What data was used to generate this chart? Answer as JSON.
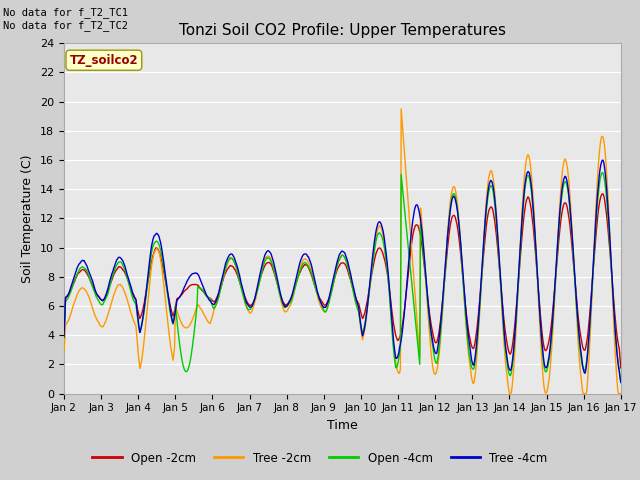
{
  "title": "Tonzi Soil CO2 Profile: Upper Temperatures",
  "xlabel": "Time",
  "ylabel": "Soil Temperature (C)",
  "ylim": [
    0,
    24
  ],
  "xlim": [
    0,
    360
  ],
  "fig_bg_color": "#d0d0d0",
  "plot_bg_color": "#e8e8e8",
  "annotation_top": "No data for f_T2_TC1\nNo data for f_T2_TC2",
  "file_label": "TZ_soilco2",
  "legend_labels": [
    "Open -2cm",
    "Tree -2cm",
    "Open -4cm",
    "Tree -4cm"
  ],
  "legend_colors": [
    "#cc0000",
    "#ff9900",
    "#00cc00",
    "#0000cc"
  ],
  "line_colors": [
    "#cc0000",
    "#ff9900",
    "#00cc00",
    "#0000cc"
  ],
  "xtick_labels": [
    "Jan 2",
    "Jan 3",
    "Jan 4",
    "Jan 5",
    "Jan 6",
    "Jan 7",
    "Jan 8",
    "Jan 9",
    "Jan 10",
    "Jan 11",
    "Jan 12",
    "Jan 13",
    "Jan 14",
    "Jan 15",
    "Jan 16",
    "Jan 17"
  ],
  "xtick_positions": [
    0,
    24,
    48,
    72,
    96,
    120,
    144,
    168,
    192,
    216,
    240,
    264,
    288,
    312,
    336,
    360
  ],
  "ytick_positions": [
    0,
    2,
    4,
    6,
    8,
    10,
    12,
    14,
    16,
    18,
    20,
    22,
    24
  ],
  "n_points": 721
}
